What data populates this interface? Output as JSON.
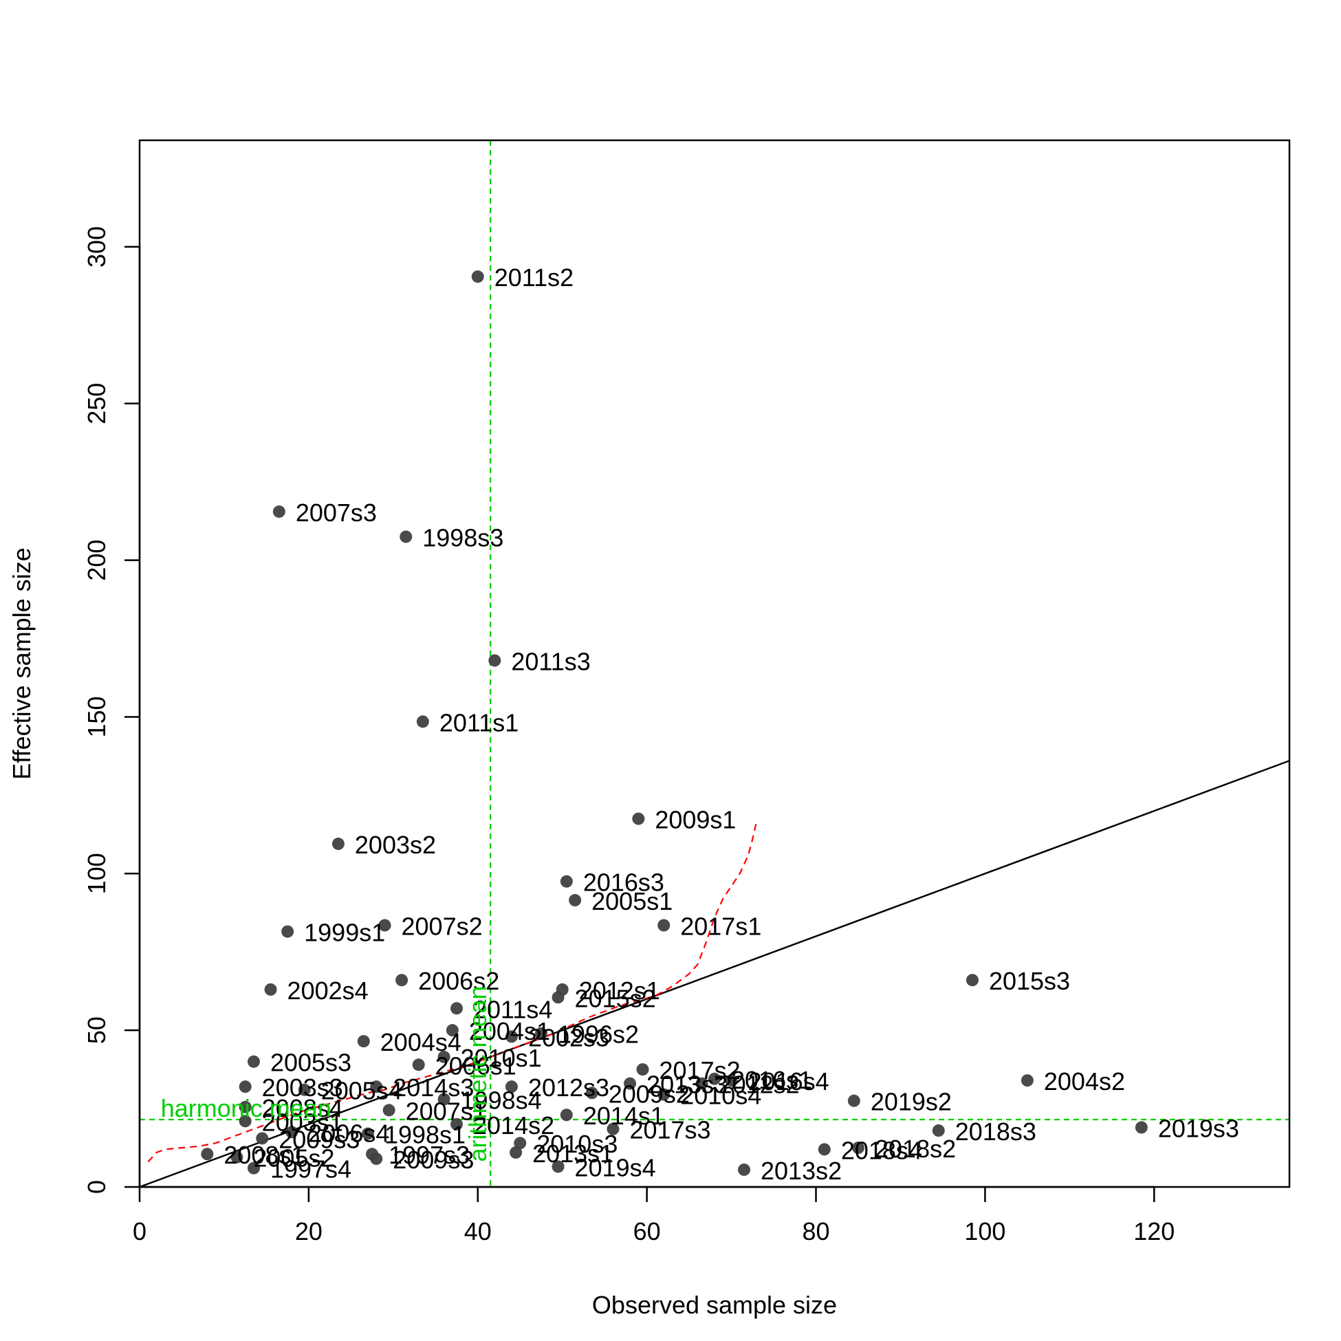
{
  "chart_data": {
    "type": "scatter",
    "title": "",
    "xlabel": "Observed sample size",
    "ylabel": "Effective sample size",
    "xlim": [
      0,
      136
    ],
    "ylim": [
      0,
      334
    ],
    "x_ticks": [
      0,
      20,
      40,
      60,
      80,
      100,
      120
    ],
    "y_ticks": [
      0,
      50,
      100,
      150,
      200,
      250,
      300
    ],
    "grid": false,
    "legend": "none",
    "point_color": "#404040",
    "one_to_one_line_color": "#000000",
    "reference_color": "#00cd00",
    "smooth_color": "#ff0000",
    "reference_lines": {
      "harmonic_mean": {
        "label": "harmonic mean",
        "y": 21.5
      },
      "arithmetic_mean": {
        "label": "arithmetic mean",
        "x": 41.5
      }
    },
    "points": [
      {
        "label": "2011s2",
        "x": 40.0,
        "y": 290.5
      },
      {
        "label": "2007s3",
        "x": 16.5,
        "y": 215.5
      },
      {
        "label": "1998s3",
        "x": 31.5,
        "y": 207.5
      },
      {
        "label": "2011s3",
        "x": 42.0,
        "y": 168.0
      },
      {
        "label": "2011s1",
        "x": 33.5,
        "y": 148.5
      },
      {
        "label": "2009s1",
        "x": 59.0,
        "y": 117.5
      },
      {
        "label": "2003s2",
        "x": 23.5,
        "y": 109.5
      },
      {
        "label": "2016s3",
        "x": 50.5,
        "y": 97.5
      },
      {
        "label": "2005s1",
        "x": 51.5,
        "y": 91.5
      },
      {
        "label": "2017s1",
        "x": 62.0,
        "y": 83.5
      },
      {
        "label": "2007s2",
        "x": 29.0,
        "y": 83.5
      },
      {
        "label": "1999s1",
        "x": 17.5,
        "y": 81.5
      },
      {
        "label": "2015s3",
        "x": 98.5,
        "y": 66.0
      },
      {
        "label": "2006s2",
        "x": 31.0,
        "y": 66.0
      },
      {
        "label": "2002s4",
        "x": 15.5,
        "y": 63.0
      },
      {
        "label": "2012s1",
        "x": 50.0,
        "y": 63.0
      },
      {
        "label": "2015s2",
        "x": 49.5,
        "y": 60.5
      },
      {
        "label": "2011s4",
        "x": 37.5,
        "y": 57.0
      },
      {
        "label": "2004s1",
        "x": 37.0,
        "y": 50.0
      },
      {
        "label": "1996s2",
        "x": 47.5,
        "y": 49.0
      },
      {
        "label": "2002s3",
        "x": 44.0,
        "y": 48.0
      },
      {
        "label": "2004s4",
        "x": 26.5,
        "y": 46.5
      },
      {
        "label": "2010s1",
        "x": 36.0,
        "y": 41.5
      },
      {
        "label": "2005s3",
        "x": 13.5,
        "y": 40.0
      },
      {
        "label": "2006s1",
        "x": 33.0,
        "y": 39.0
      },
      {
        "label": "2017s2",
        "x": 59.5,
        "y": 37.5
      },
      {
        "label": "2004s2",
        "x": 105.0,
        "y": 34.0
      },
      {
        "label": "2016s4",
        "x": 70.0,
        "y": 34.0
      },
      {
        "label": "2016s1",
        "x": 68.0,
        "y": 34.5
      },
      {
        "label": "2012s2",
        "x": 66.5,
        "y": 33.0
      },
      {
        "label": "2013s3",
        "x": 58.0,
        "y": 33.0
      },
      {
        "label": "2012s3",
        "x": 44.0,
        "y": 32.0
      },
      {
        "label": "2014s3",
        "x": 28.0,
        "y": 32.0
      },
      {
        "label": "2003s3",
        "x": 12.5,
        "y": 32.0
      },
      {
        "label": "2005s4",
        "x": 19.5,
        "y": 31.0
      },
      {
        "label": "2009s2",
        "x": 53.5,
        "y": 30.0
      },
      {
        "label": "2010s4",
        "x": 62.0,
        "y": 29.5
      },
      {
        "label": "1998s4",
        "x": 36.0,
        "y": 28.0
      },
      {
        "label": "2019s2",
        "x": 84.5,
        "y": 27.5
      },
      {
        "label": "2008s4",
        "x": 12.5,
        "y": 25.5
      },
      {
        "label": "2007s1",
        "x": 29.5,
        "y": 24.5
      },
      {
        "label": "2014s1",
        "x": 50.5,
        "y": 23.0
      },
      {
        "label": "2003s1",
        "x": 12.5,
        "y": 21.0
      },
      {
        "label": "2014s2",
        "x": 37.5,
        "y": 20.0
      },
      {
        "label": "2019s3",
        "x": 118.5,
        "y": 19.0
      },
      {
        "label": "2017s3",
        "x": 56.0,
        "y": 18.5
      },
      {
        "label": "2018s3",
        "x": 94.5,
        "y": 18.0
      },
      {
        "label": "2006s4",
        "x": 18.0,
        "y": 17.5
      },
      {
        "label": "1998s1",
        "x": 27.0,
        "y": 17.0
      },
      {
        "label": "2009s3",
        "x": 14.5,
        "y": 15.5
      },
      {
        "label": "2010s3",
        "x": 45.0,
        "y": 14.0
      },
      {
        "label": "2018s2",
        "x": 85.0,
        "y": 12.5
      },
      {
        "label": "2018s4",
        "x": 81.0,
        "y": 12.0
      },
      {
        "label": "2013s1",
        "x": 44.5,
        "y": 11.0
      },
      {
        "label": "1997s3",
        "x": 27.5,
        "y": 10.5
      },
      {
        "label": "2008s1",
        "x": 8.0,
        "y": 10.5
      },
      {
        "label": "2005s2",
        "x": 11.5,
        "y": 9.5
      },
      {
        "label": "2009s3",
        "x": 28.0,
        "y": 9.0
      },
      {
        "label": "1997s4",
        "x": 13.5,
        "y": 6.0
      },
      {
        "label": "2019s4",
        "x": 49.5,
        "y": 6.5
      },
      {
        "label": "2013s2",
        "x": 71.5,
        "y": 5.5
      }
    ],
    "smooth_curve": [
      [
        1,
        8
      ],
      [
        2,
        11
      ],
      [
        3,
        12
      ],
      [
        5,
        12.5
      ],
      [
        7,
        13
      ],
      [
        9,
        14
      ],
      [
        11,
        16
      ],
      [
        13,
        18
      ],
      [
        15,
        20
      ],
      [
        17,
        22
      ],
      [
        19,
        24
      ],
      [
        21,
        25.5
      ],
      [
        23,
        27
      ],
      [
        25,
        28.5
      ],
      [
        27,
        30
      ],
      [
        29,
        31
      ],
      [
        31,
        33
      ],
      [
        33,
        34.5
      ],
      [
        35,
        36
      ],
      [
        37,
        37.5
      ],
      [
        39,
        39
      ],
      [
        41,
        41
      ],
      [
        43,
        43
      ],
      [
        45,
        45
      ],
      [
        47,
        47
      ],
      [
        49,
        49
      ],
      [
        51,
        51.5
      ],
      [
        53,
        54
      ],
      [
        55,
        56
      ],
      [
        57,
        58
      ],
      [
        59,
        59.5
      ],
      [
        61,
        61
      ],
      [
        63,
        64
      ],
      [
        65,
        68
      ],
      [
        66,
        71
      ],
      [
        67,
        78
      ],
      [
        68,
        86
      ],
      [
        69,
        92
      ],
      [
        70,
        96
      ],
      [
        71,
        100
      ],
      [
        72,
        106
      ],
      [
        72.5,
        111
      ],
      [
        73,
        117
      ]
    ]
  }
}
